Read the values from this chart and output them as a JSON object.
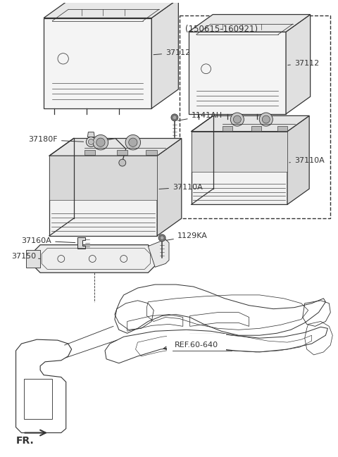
{
  "bg_color": "#ffffff",
  "line_color": "#333333",
  "dashed_box_label": "(150615-160921)",
  "ref_label": "REF.60-640",
  "fr_label": "FR.",
  "label_fontsize": 8.0
}
